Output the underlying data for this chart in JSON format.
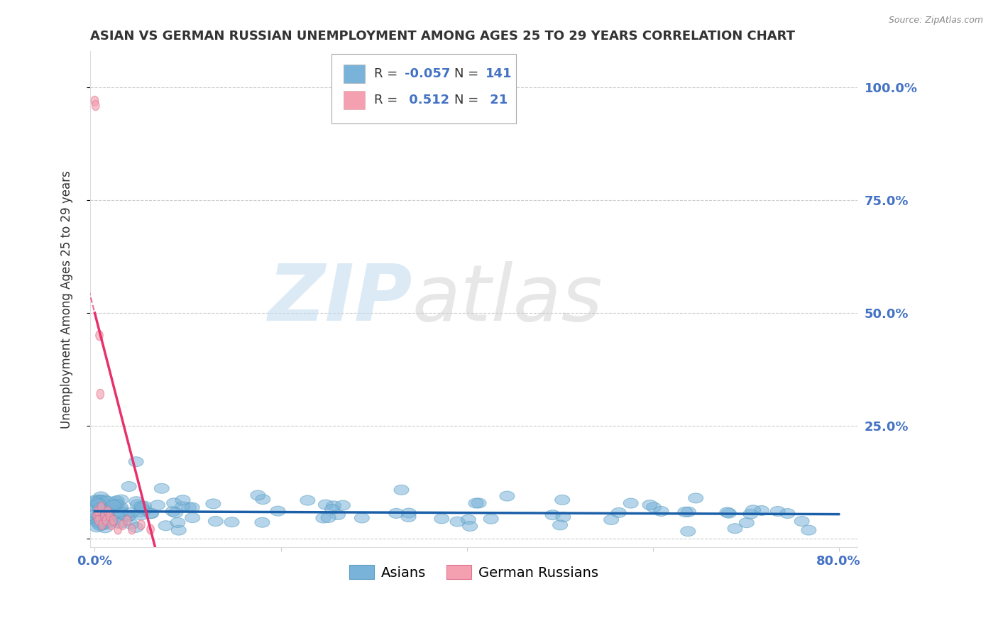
{
  "title": "ASIAN VS GERMAN RUSSIAN UNEMPLOYMENT AMONG AGES 25 TO 29 YEARS CORRELATION CHART",
  "source": "Source: ZipAtlas.com",
  "ylabel": "Unemployment Among Ages 25 to 29 years",
  "xlim": [
    -0.005,
    0.82
  ],
  "ylim": [
    -0.02,
    1.08
  ],
  "xticks": [
    0.0,
    0.2,
    0.4,
    0.6,
    0.8
  ],
  "xticklabels": [
    "0.0%",
    "",
    "",
    "",
    "80.0%"
  ],
  "yticks": [
    0.0,
    0.25,
    0.5,
    0.75,
    1.0
  ],
  "yticklabels_right": [
    "",
    "25.0%",
    "50.0%",
    "75.0%",
    "100.0%"
  ],
  "asian_color": "#7ab3d9",
  "asian_edge_color": "#5a9fc0",
  "german_russian_color": "#f4a0b0",
  "german_russian_edge_color": "#e07090",
  "asian_line_color": "#1a5fa8",
  "german_russian_line_color": "#e8306a",
  "asian_R": -0.057,
  "asian_N": 141,
  "german_russian_R": 0.512,
  "german_russian_N": 21,
  "background_color": "#ffffff",
  "grid_color": "#cccccc",
  "tick_color": "#4472c4",
  "legend_R_color": "#4472c4",
  "legend_label_color": "#333333",
  "title_color": "#333333",
  "source_color": "#888888",
  "ylabel_color": "#333333",
  "watermark_ZIP_color": "#c5ddf0",
  "watermark_atlas_color": "#d0d0d0"
}
